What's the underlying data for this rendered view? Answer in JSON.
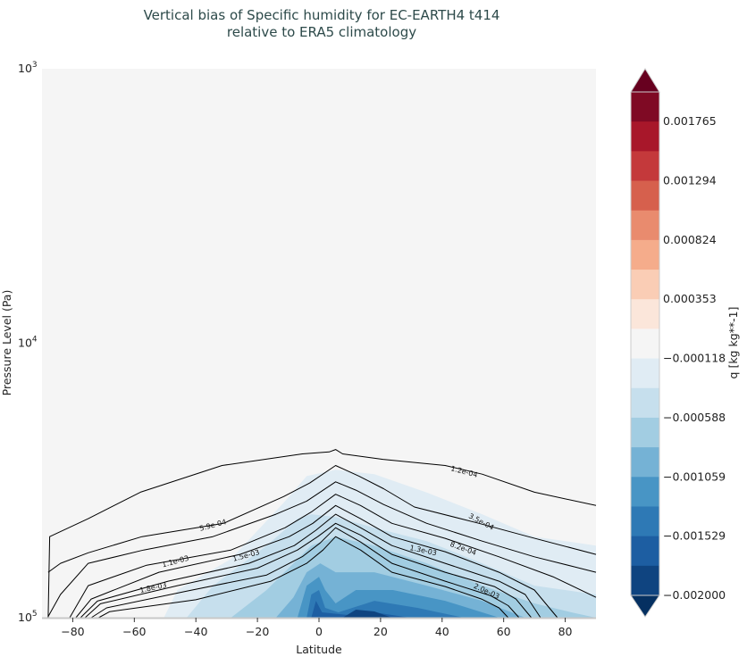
{
  "chart_data": {
    "type": "contourf",
    "title": "Vertical bias of Specific humidity for EC-EARTH4 t414",
    "subtitle": "relative to ERA5 climatology",
    "xlabel": "Latitude",
    "ylabel": "Pressure Level (Pa)",
    "xlim": [
      -90,
      90
    ],
    "ylim": [
      100000,
      1000
    ],
    "yscale": "log",
    "x_ticks": [
      -80,
      -60,
      -40,
      -20,
      0,
      20,
      40,
      60,
      80
    ],
    "y_ticks": [
      {
        "value": 1000,
        "base": "10",
        "exp": "3"
      },
      {
        "value": 10000,
        "base": "10",
        "exp": "4"
      },
      {
        "value": 100000,
        "base": "10",
        "exp": "5"
      }
    ],
    "plot_background": "#f5f5f5",
    "colorbar": {
      "label": "q [kg kg**-1]",
      "colormap": "RdBu_r",
      "extend": "both",
      "extend_colors": {
        "top": "#67001f",
        "bottom": "#053061"
      },
      "band_colors_top_to_bottom": [
        "#7f0a24",
        "#a8172a",
        "#c4393b",
        "#d6604d",
        "#e98b6e",
        "#f5ac8b",
        "#facdb5",
        "#fbe6da",
        "#f5f5f5",
        "#e0ecf4",
        "#c6dfed",
        "#a2cde2",
        "#75b2d5",
        "#4895c5",
        "#2e79b5",
        "#1d5ea2",
        "#0f4480"
      ],
      "tick_labels": [
        "0.001765",
        "0.001294",
        "0.000824",
        "0.000353",
        "−0.000118",
        "−0.000588",
        "−0.001059",
        "−0.001529",
        "−0.002000"
      ],
      "tick_values": [
        0.001765,
        0.001294,
        0.000824,
        0.000353,
        -0.000118,
        -0.000588,
        -0.001059,
        -0.001529,
        -0.002
      ]
    },
    "filled_regions": [
      {
        "color": "#e0ecf4",
        "points": [
          [
            -50.4,
            100000
          ],
          [
            -46,
            79300
          ],
          [
            -28.6,
            61100
          ],
          [
            -11,
            37600
          ],
          [
            -4,
            30500
          ],
          [
            5.4,
            28900
          ],
          [
            18,
            30000
          ],
          [
            35,
            35000
          ],
          [
            53,
            42000
          ],
          [
            70,
            50650
          ],
          [
            90,
            54600
          ],
          [
            90,
            100000
          ]
        ]
      },
      {
        "color": "#c6dfed",
        "points": [
          [
            -43,
            100000
          ],
          [
            -34.4,
            76400
          ],
          [
            -17,
            54600
          ],
          [
            -7,
            43600
          ],
          [
            -2.5,
            42000
          ],
          [
            5.4,
            43000
          ],
          [
            18,
            47000
          ],
          [
            35,
            52600
          ],
          [
            53,
            63400
          ],
          [
            70,
            76400
          ],
          [
            90,
            82300
          ],
          [
            90,
            100000
          ]
        ]
      },
      {
        "color": "#a2cde2",
        "points": [
          [
            -28.6,
            100000
          ],
          [
            -17,
            79300
          ],
          [
            -8.3,
            63400
          ],
          [
            -2.5,
            54600
          ],
          [
            5.4,
            50650
          ],
          [
            18,
            54600
          ],
          [
            35,
            63400
          ],
          [
            53,
            76400
          ],
          [
            70,
            88700
          ],
          [
            82,
            95600
          ],
          [
            90,
            100000
          ]
        ]
      },
      {
        "color": "#75b2d5",
        "points": [
          [
            -14,
            100000
          ],
          [
            -8.3,
            84300
          ],
          [
            -4,
            68300
          ],
          [
            0.4,
            63400
          ],
          [
            5.4,
            68300
          ],
          [
            18,
            68300
          ],
          [
            35,
            76400
          ],
          [
            53,
            86800
          ],
          [
            67,
            100000
          ]
        ]
      },
      {
        "color": "#4895c5",
        "points": [
          [
            -7,
            100000
          ],
          [
            -4,
            76400
          ],
          [
            0,
            71000
          ],
          [
            2,
            79300
          ],
          [
            5.4,
            88700
          ],
          [
            12,
            79300
          ],
          [
            24,
            79300
          ],
          [
            41,
            86800
          ],
          [
            58.6,
            100000
          ]
        ]
      },
      {
        "color": "#2e79b5",
        "points": [
          [
            -4,
            100000
          ],
          [
            -2.5,
            82300
          ],
          [
            0,
            79300
          ],
          [
            2,
            92100
          ],
          [
            6.3,
            95600
          ],
          [
            18,
            86800
          ],
          [
            32,
            92100
          ],
          [
            47,
            100000
          ]
        ]
      },
      {
        "color": "#1d5ea2",
        "points": [
          [
            -2.5,
            100000
          ],
          [
            -1,
            86800
          ],
          [
            1,
            95600
          ],
          [
            9.2,
            97700
          ],
          [
            18,
            95600
          ],
          [
            29.5,
            100000
          ]
        ]
      },
      {
        "color": "#0f4480",
        "points": [
          [
            7.7,
            100000
          ],
          [
            12,
            93500
          ],
          [
            18,
            94900
          ],
          [
            23.7,
            100000
          ]
        ]
      }
    ],
    "contours": [
      {
        "level": "1.2e-04",
        "points": [
          [
            -88,
            100000
          ],
          [
            -87.5,
            50650
          ],
          [
            -75,
            43600
          ],
          [
            -58,
            34900
          ],
          [
            -31.5,
            27900
          ],
          [
            -5.4,
            25300
          ],
          [
            3.3,
            24900
          ],
          [
            5.4,
            24400
          ],
          [
            7.7,
            25300
          ],
          [
            20.8,
            26500
          ],
          [
            41,
            27900
          ],
          [
            53,
            30000
          ],
          [
            70,
            34900
          ],
          [
            90,
            39000
          ]
        ]
      },
      {
        "level": "3.5e-04",
        "points": [
          [
            -88,
            68300
          ],
          [
            -84,
            63400
          ],
          [
            -75,
            58000
          ],
          [
            -57.5,
            50650
          ],
          [
            -31,
            45300
          ],
          [
            -11.5,
            36200
          ],
          [
            -3,
            32300
          ],
          [
            5.4,
            27900
          ],
          [
            13,
            30500
          ],
          [
            21,
            33900
          ],
          [
            31,
            39500
          ],
          [
            52,
            45300
          ],
          [
            68,
            50650
          ],
          [
            90,
            58800
          ]
        ]
      },
      {
        "level": "5.9e-04",
        "points": [
          [
            -88,
            99000
          ],
          [
            -84,
            82300
          ],
          [
            -75,
            63400
          ],
          [
            -57,
            56700
          ],
          [
            -34.5,
            50650
          ],
          [
            -14,
            42000
          ],
          [
            -4,
            37600
          ],
          [
            5.4,
            32000
          ],
          [
            12,
            34300
          ],
          [
            21,
            38700
          ],
          [
            35,
            45300
          ],
          [
            53,
            52600
          ],
          [
            70,
            60000
          ],
          [
            90,
            68300
          ]
        ]
      },
      {
        "level": "8.2e-04",
        "points": [
          [
            -81,
            100000
          ],
          [
            -75,
            76400
          ],
          [
            -56,
            64400
          ],
          [
            -28.6,
            56700
          ],
          [
            -11,
            47000
          ],
          [
            -2.5,
            41200
          ],
          [
            5.4,
            35500
          ],
          [
            13.5,
            39000
          ],
          [
            23.7,
            45300
          ],
          [
            41,
            51400
          ],
          [
            58.5,
            60000
          ],
          [
            76,
            70900
          ],
          [
            90,
            84300
          ]
        ]
      },
      {
        "level": "1.1e-03",
        "points": [
          [
            -79,
            100000
          ],
          [
            -74,
            85500
          ],
          [
            -52,
            68300
          ],
          [
            -25.7,
            58800
          ],
          [
            -9.7,
            50650
          ],
          [
            -2,
            45300
          ],
          [
            5.4,
            39000
          ],
          [
            13.5,
            43600
          ],
          [
            23.7,
            50650
          ],
          [
            41,
            57500
          ],
          [
            58.5,
            68300
          ],
          [
            70,
            79300
          ],
          [
            77.5,
            100000
          ]
        ]
      },
      {
        "level": "1.3e-03",
        "points": [
          [
            -77.5,
            100000
          ],
          [
            -72,
            87000
          ],
          [
            -49,
            73600
          ],
          [
            -22.8,
            63400
          ],
          [
            -8,
            54600
          ],
          [
            -1,
            48000
          ],
          [
            5.4,
            42000
          ],
          [
            13.5,
            47000
          ],
          [
            23.7,
            54600
          ],
          [
            41,
            63400
          ],
          [
            58.5,
            73600
          ],
          [
            67,
            82300
          ],
          [
            72,
            100000
          ]
        ]
      },
      {
        "level": "1.5e-03",
        "points": [
          [
            -76,
            100000
          ],
          [
            -71,
            89000
          ],
          [
            -46,
            76400
          ],
          [
            -20,
            66000
          ],
          [
            -7,
            56700
          ],
          [
            -0.4,
            50650
          ],
          [
            5.4,
            45300
          ],
          [
            13.5,
            50000
          ],
          [
            23.7,
            58800
          ],
          [
            41,
            68300
          ],
          [
            57,
            77000
          ],
          [
            64,
            85500
          ],
          [
            69,
            100000
          ]
        ]
      },
      {
        "level": "1.8e-03",
        "points": [
          [
            -74,
            100000
          ],
          [
            -69,
            92100
          ],
          [
            -43,
            80000
          ],
          [
            -17,
            69900
          ],
          [
            -5.4,
            59900
          ],
          [
            0.4,
            53400
          ],
          [
            5.4,
            47000
          ],
          [
            13.5,
            53000
          ],
          [
            23.7,
            63400
          ],
          [
            41,
            73600
          ],
          [
            55.6,
            83000
          ],
          [
            61.5,
            90400
          ],
          [
            65,
            100000
          ]
        ]
      },
      {
        "level": "2.0e-03",
        "points": [
          [
            -71.6,
            100000
          ],
          [
            -68,
            95000
          ],
          [
            -40,
            86000
          ],
          [
            -15.6,
            73600
          ],
          [
            -4,
            63400
          ],
          [
            1.3,
            56700
          ],
          [
            5.4,
            50650
          ],
          [
            13.5,
            56700
          ],
          [
            23.7,
            68300
          ],
          [
            41,
            77000
          ],
          [
            52.8,
            85500
          ],
          [
            58.5,
            92100
          ],
          [
            61.5,
            100000
          ]
        ]
      }
    ],
    "contour_labels": [
      {
        "text": "1.2e-04",
        "lat": 47.2,
        "p": 29300
      },
      {
        "text": "3.5e-04",
        "lat": 52.8,
        "p": 44600
      },
      {
        "text": "5.9e-04",
        "lat": -34.5,
        "p": 45900
      },
      {
        "text": "8.2e-04",
        "lat": 46.9,
        "p": 55800
      },
      {
        "text": "1.1e-03",
        "lat": -46.7,
        "p": 62200
      },
      {
        "text": "1.3e-03",
        "lat": 33.9,
        "p": 56700
      },
      {
        "text": "1.5e-03",
        "lat": -23.7,
        "p": 59200
      },
      {
        "text": "1.8e-03",
        "lat": -53.9,
        "p": 77500
      },
      {
        "text": "2.0e-03",
        "lat": 54.5,
        "p": 79900
      }
    ]
  }
}
